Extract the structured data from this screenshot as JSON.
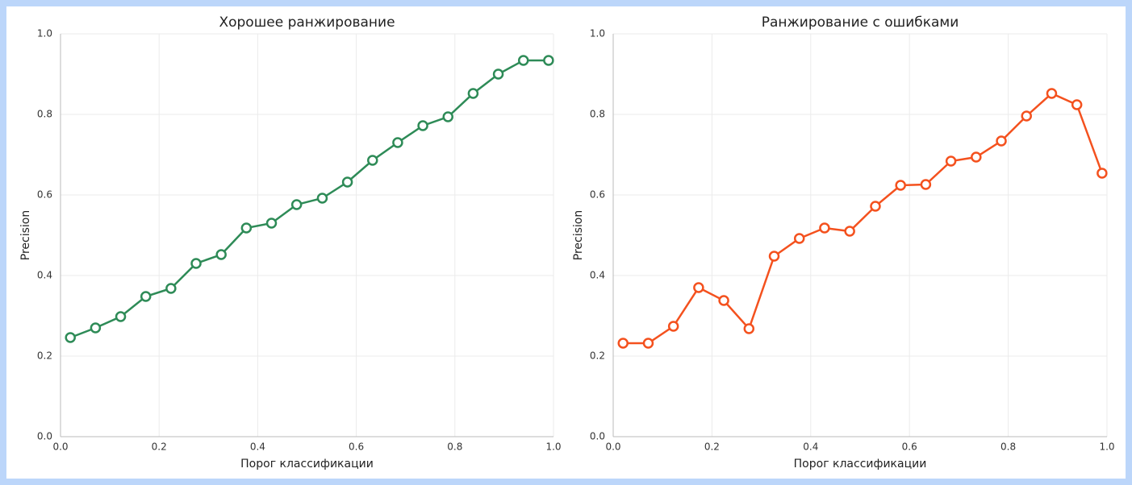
{
  "chart_data": [
    {
      "type": "line",
      "title": "Хорошее ранжирование",
      "x_label": "Порог классификации",
      "y_label": "Precision",
      "x": [
        0.02,
        0.071,
        0.122,
        0.173,
        0.224,
        0.275,
        0.326,
        0.377,
        0.428,
        0.479,
        0.531,
        0.582,
        0.633,
        0.684,
        0.735,
        0.786,
        0.837,
        0.888,
        0.939,
        0.99
      ],
      "series": [
        {
          "name": null,
          "color": "#2e8b57",
          "values": [
            0.246,
            0.27,
            0.298,
            0.348,
            0.368,
            0.43,
            0.452,
            0.518,
            0.53,
            0.576,
            0.592,
            0.632,
            0.686,
            0.73,
            0.772,
            0.794,
            0.852,
            0.9,
            0.934,
            0.934
          ]
        }
      ],
      "xlim": [
        0,
        1
      ],
      "ylim": [
        0,
        1
      ],
      "xticks": [
        {
          "value": 0,
          "label": "0.0"
        },
        0.2,
        0.4,
        0.6,
        0.8,
        {
          "value": 1,
          "label": "1.0"
        }
      ],
      "yticks": [
        {
          "value": 0,
          "label": "0.0"
        },
        0.2,
        0.4,
        0.6,
        0.8,
        {
          "value": 1,
          "label": "1.0"
        }
      ],
      "grid": true
    },
    {
      "type": "line",
      "title": "Ранжирование с ошибками",
      "x_label": "Порог классификации",
      "y_label": "Precision",
      "x": [
        0.02,
        0.071,
        0.122,
        0.173,
        0.224,
        0.275,
        0.326,
        0.377,
        0.428,
        0.479,
        0.531,
        0.582,
        0.633,
        0.684,
        0.735,
        0.786,
        0.837,
        0.888,
        0.939,
        0.99
      ],
      "series": [
        {
          "name": null,
          "color": "#f4511e",
          "values": [
            0.232,
            0.232,
            0.274,
            0.37,
            0.338,
            0.268,
            0.448,
            0.492,
            0.518,
            0.51,
            0.572,
            0.624,
            0.626,
            0.684,
            0.694,
            0.734,
            0.796,
            0.852,
            0.824,
            0.654
          ]
        }
      ],
      "xlim": [
        0,
        1
      ],
      "ylim": [
        0,
        1
      ],
      "xticks": [
        {
          "value": 0,
          "label": "0.0"
        },
        0.2,
        0.4,
        0.6,
        0.8,
        {
          "value": 1,
          "label": "1.0"
        }
      ],
      "yticks": [
        {
          "value": 0,
          "label": "0.0"
        },
        0.2,
        0.4,
        0.6,
        0.8,
        {
          "value": 1,
          "label": "1.0"
        }
      ],
      "grid": true
    }
  ]
}
